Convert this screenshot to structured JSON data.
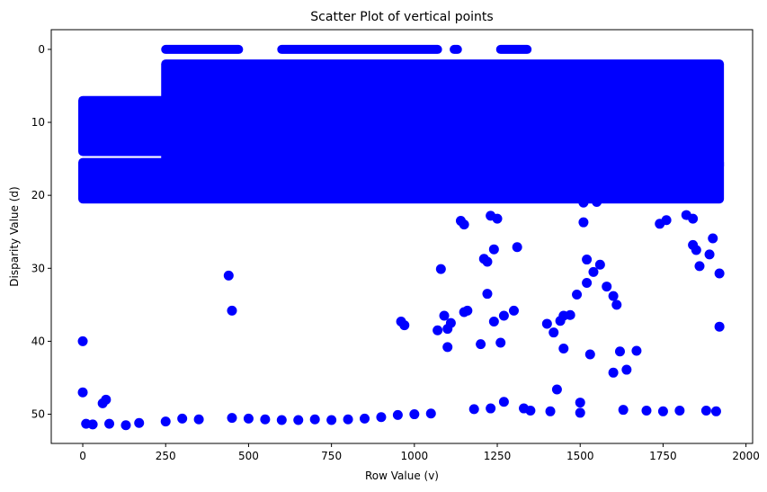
{
  "chart_data": {
    "type": "scatter",
    "title": "Scatter Plot of vertical points",
    "xlabel": "Row Value (v)",
    "ylabel": "Disparity Value (d)",
    "xlim": [
      -95,
      2020
    ],
    "ylim": [
      54,
      -2.7
    ],
    "y_inverted": true,
    "grid": false,
    "point_color": "#0000ff",
    "x_ticks": [
      0,
      250,
      500,
      750,
      1000,
      1250,
      1500,
      1750,
      2000
    ],
    "y_ticks": [
      0,
      10,
      20,
      30,
      40,
      50
    ],
    "dense_regions": [
      {
        "x": [
          250,
          470
        ],
        "y": [
          0,
          0
        ]
      },
      {
        "x": [
          600,
          1070
        ],
        "y": [
          0,
          0
        ]
      },
      {
        "x": [
          1120,
          1130
        ],
        "y": [
          0,
          0
        ]
      },
      {
        "x": [
          1260,
          1340
        ],
        "y": [
          0,
          0
        ]
      },
      {
        "x": [
          0,
          250
        ],
        "y": [
          7,
          14
        ]
      },
      {
        "x": [
          250,
          1920
        ],
        "y": [
          2,
          16
        ]
      },
      {
        "x": [
          0,
          1920
        ],
        "y": [
          15.5,
          20.5
        ]
      }
    ],
    "points": [
      [
        0,
        40
      ],
      [
        0,
        47
      ],
      [
        10,
        51.3
      ],
      [
        30,
        51.4
      ],
      [
        60,
        48.5
      ],
      [
        70,
        48
      ],
      [
        80,
        51.3
      ],
      [
        130,
        51.5
      ],
      [
        170,
        51.2
      ],
      [
        250,
        51
      ],
      [
        300,
        50.6
      ],
      [
        350,
        50.7
      ],
      [
        440,
        31
      ],
      [
        450,
        35.8
      ],
      [
        450,
        50.5
      ],
      [
        500,
        50.6
      ],
      [
        550,
        50.7
      ],
      [
        600,
        50.8
      ],
      [
        650,
        50.8
      ],
      [
        700,
        50.7
      ],
      [
        750,
        50.8
      ],
      [
        800,
        50.7
      ],
      [
        850,
        50.6
      ],
      [
        900,
        50.4
      ],
      [
        950,
        50.1
      ],
      [
        960,
        37.3
      ],
      [
        970,
        37.8
      ],
      [
        1000,
        50
      ],
      [
        1050,
        49.9
      ],
      [
        1070,
        38.5
      ],
      [
        1080,
        30.1
      ],
      [
        1090,
        36.5
      ],
      [
        1100,
        38.3
      ],
      [
        1100,
        40.8
      ],
      [
        1110,
        37.5
      ],
      [
        1140,
        23.5
      ],
      [
        1150,
        24
      ],
      [
        1150,
        36
      ],
      [
        1160,
        35.8
      ],
      [
        1180,
        49.3
      ],
      [
        1200,
        40.4
      ],
      [
        1210,
        28.7
      ],
      [
        1220,
        29.1
      ],
      [
        1220,
        33.5
      ],
      [
        1230,
        49.2
      ],
      [
        1230,
        22.8
      ],
      [
        1240,
        37.3
      ],
      [
        1240,
        27.4
      ],
      [
        1250,
        23.2
      ],
      [
        1260,
        40.2
      ],
      [
        1270,
        36.5
      ],
      [
        1270,
        48.3
      ],
      [
        1300,
        35.8
      ],
      [
        1310,
        27.1
      ],
      [
        1330,
        49.2
      ],
      [
        1350,
        49.5
      ],
      [
        1400,
        37.6
      ],
      [
        1410,
        49.6
      ],
      [
        1420,
        38.8
      ],
      [
        1430,
        46.6
      ],
      [
        1440,
        37.2
      ],
      [
        1450,
        41
      ],
      [
        1450,
        36.5
      ],
      [
        1470,
        36.4
      ],
      [
        1490,
        33.6
      ],
      [
        1500,
        48.4
      ],
      [
        1500,
        49.8
      ],
      [
        1510,
        21
      ],
      [
        1510,
        23.7
      ],
      [
        1520,
        28.8
      ],
      [
        1520,
        32
      ],
      [
        1530,
        41.8
      ],
      [
        1540,
        30.5
      ],
      [
        1550,
        20.9
      ],
      [
        1560,
        29.5
      ],
      [
        1580,
        32.5
      ],
      [
        1600,
        33.8
      ],
      [
        1600,
        44.3
      ],
      [
        1610,
        35
      ],
      [
        1620,
        41.4
      ],
      [
        1630,
        49.4
      ],
      [
        1640,
        43.9
      ],
      [
        1670,
        41.3
      ],
      [
        1700,
        49.5
      ],
      [
        1740,
        23.9
      ],
      [
        1750,
        49.6
      ],
      [
        1760,
        23.4
      ],
      [
        1800,
        49.5
      ],
      [
        1820,
        22.7
      ],
      [
        1840,
        23.2
      ],
      [
        1840,
        26.8
      ],
      [
        1850,
        27.5
      ],
      [
        1860,
        29.7
      ],
      [
        1880,
        49.5
      ],
      [
        1890,
        28.1
      ],
      [
        1900,
        25.9
      ],
      [
        1910,
        49.6
      ],
      [
        1920,
        30.7
      ],
      [
        1920,
        38
      ]
    ]
  }
}
